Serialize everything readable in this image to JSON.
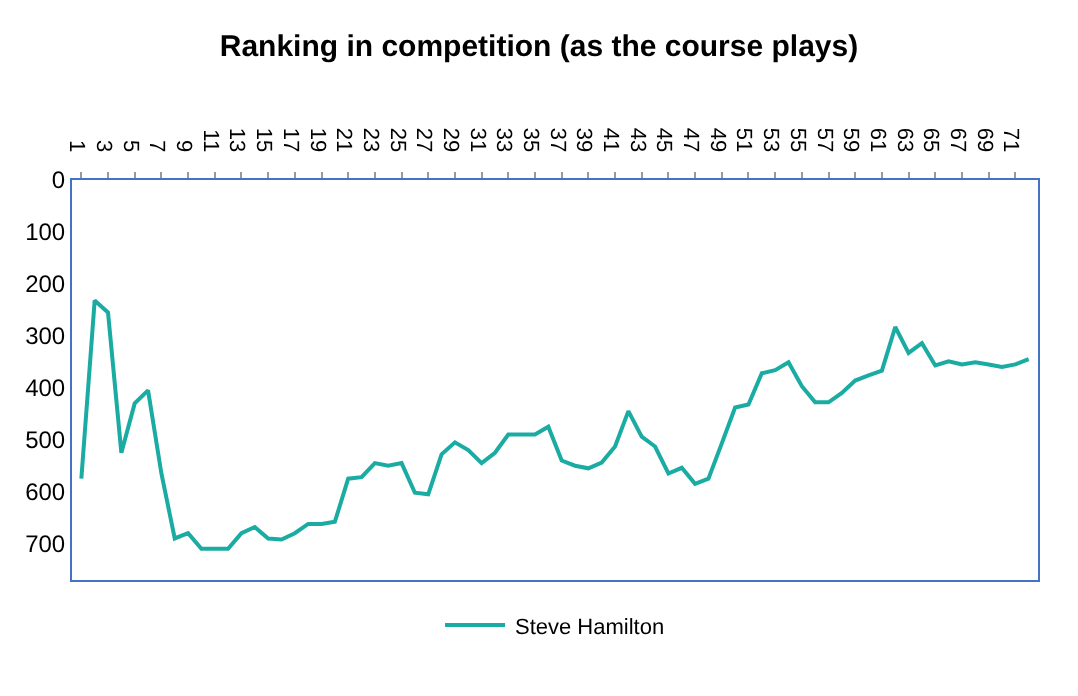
{
  "chart_data": {
    "type": "line",
    "title": "Ranking in competition (as the course plays)",
    "categories": [
      "1",
      null,
      "3",
      null,
      "5",
      null,
      "7",
      null,
      "9",
      null,
      "11",
      null,
      "13",
      null,
      "15",
      null,
      "17",
      null,
      "19",
      null,
      "21",
      null,
      "23",
      null,
      "25",
      null,
      "27",
      null,
      "29",
      null,
      "31",
      null,
      "33",
      null,
      "35",
      null,
      "37",
      null,
      "39",
      null,
      "41",
      null,
      "43",
      null,
      "45",
      null,
      "47",
      null,
      "49",
      null,
      "51",
      null,
      "53",
      null,
      "55",
      null,
      "57",
      null,
      "59",
      null,
      "61",
      null,
      "63",
      null,
      "65",
      null,
      "67",
      null,
      "69",
      null,
      "71",
      null
    ],
    "series": [
      {
        "name": "Steve Hamilton",
        "color": "#1aaba3",
        "values": [
          575,
          232,
          255,
          525,
          430,
          405,
          565,
          690,
          680,
          710,
          710,
          710,
          680,
          668,
          690,
          692,
          680,
          662,
          662,
          658,
          575,
          572,
          545,
          550,
          545,
          602,
          605,
          528,
          505,
          520,
          545,
          525,
          490,
          490,
          490,
          475,
          540,
          550,
          555,
          544,
          513,
          445,
          494,
          513,
          565,
          554,
          585,
          575,
          507,
          438,
          432,
          372,
          366,
          351,
          397,
          428,
          428,
          410,
          386,
          376,
          367,
          283,
          333,
          314,
          357,
          349,
          355,
          351,
          355,
          360,
          355,
          345
        ]
      }
    ],
    "ylim": [
      770,
      0
    ],
    "yticks": [
      0,
      100,
      200,
      300,
      400,
      500,
      600,
      700
    ],
    "grid": false,
    "legend": "bottom",
    "marker": "none",
    "line_style": "solid"
  }
}
